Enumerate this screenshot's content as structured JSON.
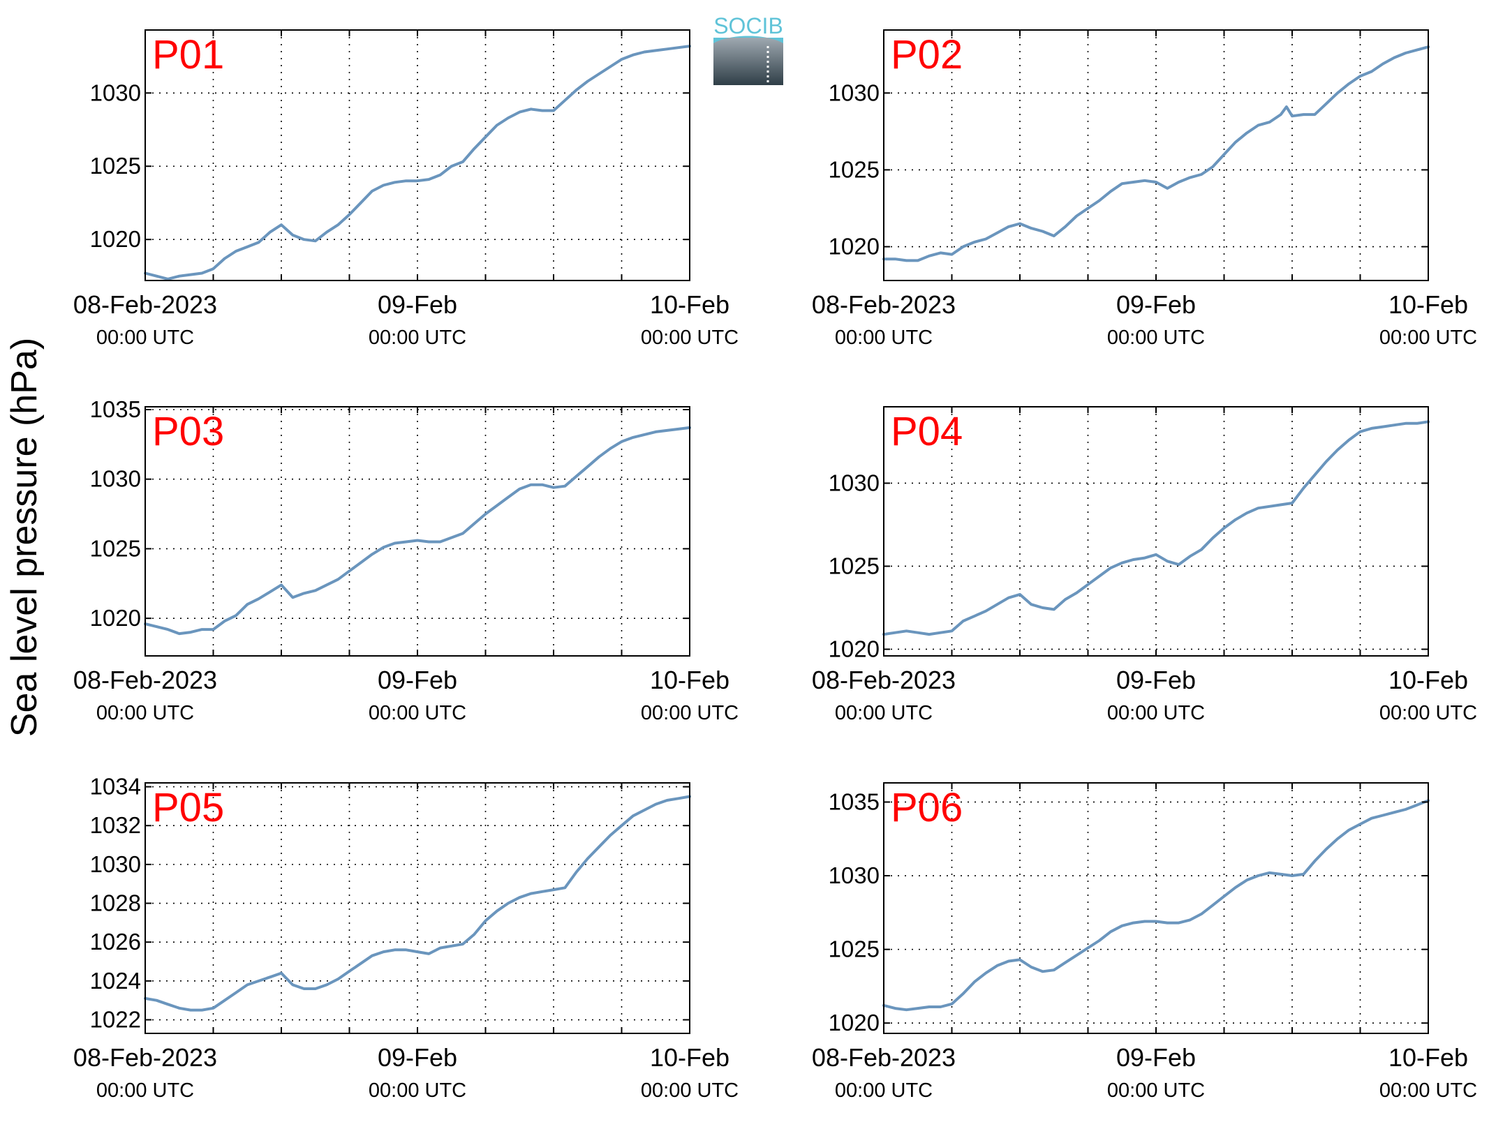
{
  "figure": {
    "ylabel": "Sea level pressure (hPa)",
    "logo_text": "SOCIB",
    "colors": {
      "line": "#6a95bd",
      "panel_label": "#ff0000",
      "axes": "#000000",
      "grid": "#000000"
    }
  },
  "chart_data": [
    {
      "type": "line",
      "name": "P01",
      "x_unit": "hours since 08-Feb-2023 00:00 UTC",
      "xlim": [
        0,
        48
      ],
      "ylim": [
        1017.2,
        1034.3
      ],
      "yticks": [
        1020,
        1025,
        1030
      ],
      "xticks": [
        0,
        24,
        48
      ],
      "xtick_labels": [
        [
          "08-Feb-2023",
          "00:00 UTC"
        ],
        [
          "09-Feb",
          "00:00 UTC"
        ],
        [
          "10-Feb",
          "00:00 UTC"
        ]
      ],
      "grid": true,
      "x": [
        0,
        1,
        2,
        3,
        4,
        5,
        6,
        7,
        8,
        9,
        10,
        11,
        12,
        13,
        14,
        15,
        16,
        17,
        18,
        19,
        20,
        21,
        22,
        23,
        24,
        25,
        26,
        27,
        28,
        29,
        30,
        31,
        32,
        33,
        34,
        35,
        36,
        37,
        38,
        39,
        40,
        41,
        42,
        43,
        44,
        45,
        46,
        47,
        48
      ],
      "y": [
        1017.7,
        1017.5,
        1017.3,
        1017.5,
        1017.6,
        1017.7,
        1018.0,
        1018.7,
        1019.2,
        1019.5,
        1019.8,
        1020.5,
        1021.0,
        1020.3,
        1020.0,
        1019.9,
        1020.5,
        1021.0,
        1021.7,
        1022.5,
        1023.3,
        1023.7,
        1023.9,
        1024.0,
        1024.0,
        1024.1,
        1024.4,
        1025.0,
        1025.3,
        1026.2,
        1027.0,
        1027.8,
        1028.3,
        1028.7,
        1028.9,
        1028.8,
        1028.8,
        1029.5,
        1030.2,
        1030.8,
        1031.3,
        1031.8,
        1032.3,
        1032.6,
        1032.8,
        1032.9,
        1033.0,
        1033.1,
        1033.2
      ]
    },
    {
      "type": "line",
      "name": "P02",
      "x_unit": "hours since 08-Feb-2023 00:00 UTC",
      "xlim": [
        0,
        48
      ],
      "ylim": [
        1017.8,
        1034.1
      ],
      "yticks": [
        1020,
        1025,
        1030
      ],
      "xticks": [
        0,
        24,
        48
      ],
      "xtick_labels": [
        [
          "08-Feb-2023",
          "00:00 UTC"
        ],
        [
          "09-Feb",
          "00:00 UTC"
        ],
        [
          "10-Feb",
          "00:00 UTC"
        ]
      ],
      "grid": true,
      "x": [
        0,
        1,
        2,
        3,
        4,
        5,
        6,
        7,
        8,
        9,
        10,
        11,
        12,
        13,
        14,
        15,
        16,
        17,
        18,
        19,
        20,
        21,
        22,
        23,
        24,
        25,
        26,
        27,
        28,
        29,
        30,
        31,
        32,
        33,
        34,
        35,
        35.5,
        36,
        37,
        38,
        39,
        40,
        41,
        42,
        43,
        44,
        45,
        46,
        47,
        48
      ],
      "y": [
        1019.2,
        1019.2,
        1019.1,
        1019.1,
        1019.4,
        1019.6,
        1019.5,
        1020.0,
        1020.3,
        1020.5,
        1020.9,
        1021.3,
        1021.5,
        1021.2,
        1021.0,
        1020.7,
        1021.3,
        1022.0,
        1022.5,
        1023.0,
        1023.6,
        1024.1,
        1024.2,
        1024.3,
        1024.2,
        1023.8,
        1024.2,
        1024.5,
        1024.7,
        1025.2,
        1026.0,
        1026.8,
        1027.4,
        1027.9,
        1028.1,
        1028.6,
        1029.1,
        1028.5,
        1028.6,
        1028.6,
        1029.3,
        1030.0,
        1030.6,
        1031.1,
        1031.4,
        1031.9,
        1032.3,
        1032.6,
        1032.8,
        1033.0
      ]
    },
    {
      "type": "line",
      "name": "P03",
      "x_unit": "hours since 08-Feb-2023 00:00 UTC",
      "xlim": [
        0,
        48
      ],
      "ylim": [
        1017.3,
        1035.2
      ],
      "yticks": [
        1020,
        1025,
        1030,
        1035
      ],
      "xticks": [
        0,
        24,
        48
      ],
      "xtick_labels": [
        [
          "08-Feb-2023",
          "00:00 UTC"
        ],
        [
          "09-Feb",
          "00:00 UTC"
        ],
        [
          "10-Feb",
          "00:00 UTC"
        ]
      ],
      "grid": true,
      "x": [
        0,
        1,
        2,
        3,
        4,
        5,
        6,
        7,
        8,
        9,
        10,
        11,
        12,
        13,
        14,
        15,
        16,
        17,
        18,
        19,
        20,
        21,
        22,
        23,
        24,
        25,
        26,
        27,
        28,
        29,
        30,
        31,
        32,
        33,
        34,
        35,
        36,
        37,
        38,
        39,
        40,
        41,
        42,
        43,
        44,
        45,
        46,
        47,
        48
      ],
      "y": [
        1019.6,
        1019.4,
        1019.2,
        1018.9,
        1019.0,
        1019.2,
        1019.2,
        1019.8,
        1020.2,
        1021.0,
        1021.4,
        1021.9,
        1022.4,
        1021.5,
        1021.8,
        1022.0,
        1022.4,
        1022.8,
        1023.4,
        1024.0,
        1024.6,
        1025.1,
        1025.4,
        1025.5,
        1025.6,
        1025.5,
        1025.5,
        1025.8,
        1026.1,
        1026.8,
        1027.5,
        1028.1,
        1028.7,
        1029.3,
        1029.6,
        1029.6,
        1029.4,
        1029.5,
        1030.2,
        1030.9,
        1031.6,
        1032.2,
        1032.7,
        1033.0,
        1033.2,
        1033.4,
        1033.5,
        1033.6,
        1033.7
      ]
    },
    {
      "type": "line",
      "name": "P04",
      "x_unit": "hours since 08-Feb-2023 00:00 UTC",
      "xlim": [
        0,
        48
      ],
      "ylim": [
        1019.6,
        1034.6
      ],
      "yticks": [
        1020,
        1025,
        1030
      ],
      "xticks": [
        0,
        24,
        48
      ],
      "xtick_labels": [
        [
          "08-Feb-2023",
          "00:00 UTC"
        ],
        [
          "09-Feb",
          "00:00 UTC"
        ],
        [
          "10-Feb",
          "00:00 UTC"
        ]
      ],
      "grid": true,
      "x": [
        0,
        1,
        2,
        3,
        4,
        5,
        6,
        7,
        8,
        9,
        10,
        11,
        12,
        13,
        14,
        15,
        16,
        17,
        18,
        19,
        20,
        21,
        22,
        23,
        24,
        25,
        26,
        27,
        28,
        29,
        30,
        31,
        32,
        33,
        34,
        35,
        36,
        37,
        38,
        39,
        40,
        41,
        42,
        43,
        44,
        45,
        46,
        47,
        48
      ],
      "y": [
        1020.9,
        1021.0,
        1021.1,
        1021.0,
        1020.9,
        1021.0,
        1021.1,
        1021.7,
        1022.0,
        1022.3,
        1022.7,
        1023.1,
        1023.3,
        1022.7,
        1022.5,
        1022.4,
        1023.0,
        1023.4,
        1023.9,
        1024.4,
        1024.9,
        1025.2,
        1025.4,
        1025.5,
        1025.7,
        1025.3,
        1025.1,
        1025.6,
        1026.0,
        1026.7,
        1027.3,
        1027.8,
        1028.2,
        1028.5,
        1028.6,
        1028.7,
        1028.8,
        1029.7,
        1030.5,
        1031.3,
        1032.0,
        1032.6,
        1033.1,
        1033.3,
        1033.4,
        1033.5,
        1033.6,
        1033.6,
        1033.7
      ]
    },
    {
      "type": "line",
      "name": "P05",
      "x_unit": "hours since 08-Feb-2023 00:00 UTC",
      "xlim": [
        0,
        48
      ],
      "ylim": [
        1021.3,
        1034.2
      ],
      "yticks": [
        1022,
        1024,
        1026,
        1028,
        1030,
        1032,
        1034
      ],
      "xticks": [
        0,
        24,
        48
      ],
      "xtick_labels": [
        [
          "08-Feb-2023",
          "00:00 UTC"
        ],
        [
          "09-Feb",
          "00:00 UTC"
        ],
        [
          "10-Feb",
          "00:00 UTC"
        ]
      ],
      "grid": true,
      "x": [
        0,
        1,
        2,
        3,
        4,
        5,
        6,
        7,
        8,
        9,
        10,
        11,
        12,
        13,
        14,
        15,
        16,
        17,
        18,
        19,
        20,
        21,
        22,
        23,
        24,
        25,
        26,
        27,
        28,
        29,
        30,
        31,
        32,
        33,
        34,
        35,
        36,
        37,
        38,
        39,
        40,
        41,
        42,
        43,
        44,
        45,
        46,
        47,
        48
      ],
      "y": [
        1023.1,
        1023.0,
        1022.8,
        1022.6,
        1022.5,
        1022.5,
        1022.6,
        1023.0,
        1023.4,
        1023.8,
        1024.0,
        1024.2,
        1024.4,
        1023.8,
        1023.6,
        1023.6,
        1023.8,
        1024.1,
        1024.5,
        1024.9,
        1025.3,
        1025.5,
        1025.6,
        1025.6,
        1025.5,
        1025.4,
        1025.7,
        1025.8,
        1025.9,
        1026.4,
        1027.1,
        1027.6,
        1028.0,
        1028.3,
        1028.5,
        1028.6,
        1028.7,
        1028.8,
        1029.6,
        1030.3,
        1030.9,
        1031.5,
        1032.0,
        1032.5,
        1032.8,
        1033.1,
        1033.3,
        1033.4,
        1033.5
      ]
    },
    {
      "type": "line",
      "name": "P06",
      "x_unit": "hours since 08-Feb-2023 00:00 UTC",
      "xlim": [
        0,
        48
      ],
      "ylim": [
        1019.3,
        1036.3
      ],
      "yticks": [
        1020,
        1025,
        1030,
        1035
      ],
      "xticks": [
        0,
        24,
        48
      ],
      "xtick_labels": [
        [
          "08-Feb-2023",
          "00:00 UTC"
        ],
        [
          "09-Feb",
          "00:00 UTC"
        ],
        [
          "10-Feb",
          "00:00 UTC"
        ]
      ],
      "grid": true,
      "x": [
        0,
        1,
        2,
        3,
        4,
        5,
        6,
        7,
        8,
        9,
        10,
        11,
        12,
        13,
        14,
        15,
        16,
        17,
        18,
        19,
        20,
        21,
        22,
        23,
        24,
        25,
        26,
        27,
        28,
        29,
        30,
        31,
        32,
        33,
        34,
        35,
        36,
        37,
        38,
        39,
        40,
        41,
        42,
        43,
        44,
        45,
        46,
        47,
        48
      ],
      "y": [
        1021.2,
        1021.0,
        1020.9,
        1021.0,
        1021.1,
        1021.1,
        1021.3,
        1022.0,
        1022.8,
        1023.4,
        1023.9,
        1024.2,
        1024.3,
        1023.8,
        1023.5,
        1023.6,
        1024.1,
        1024.6,
        1025.1,
        1025.6,
        1026.2,
        1026.6,
        1026.8,
        1026.9,
        1026.9,
        1026.8,
        1026.8,
        1027.0,
        1027.4,
        1028.0,
        1028.6,
        1029.2,
        1029.7,
        1030.0,
        1030.2,
        1030.1,
        1030.0,
        1030.1,
        1031.0,
        1031.8,
        1032.5,
        1033.1,
        1033.5,
        1033.9,
        1034.1,
        1034.3,
        1034.5,
        1034.8,
        1035.1
      ]
    }
  ]
}
